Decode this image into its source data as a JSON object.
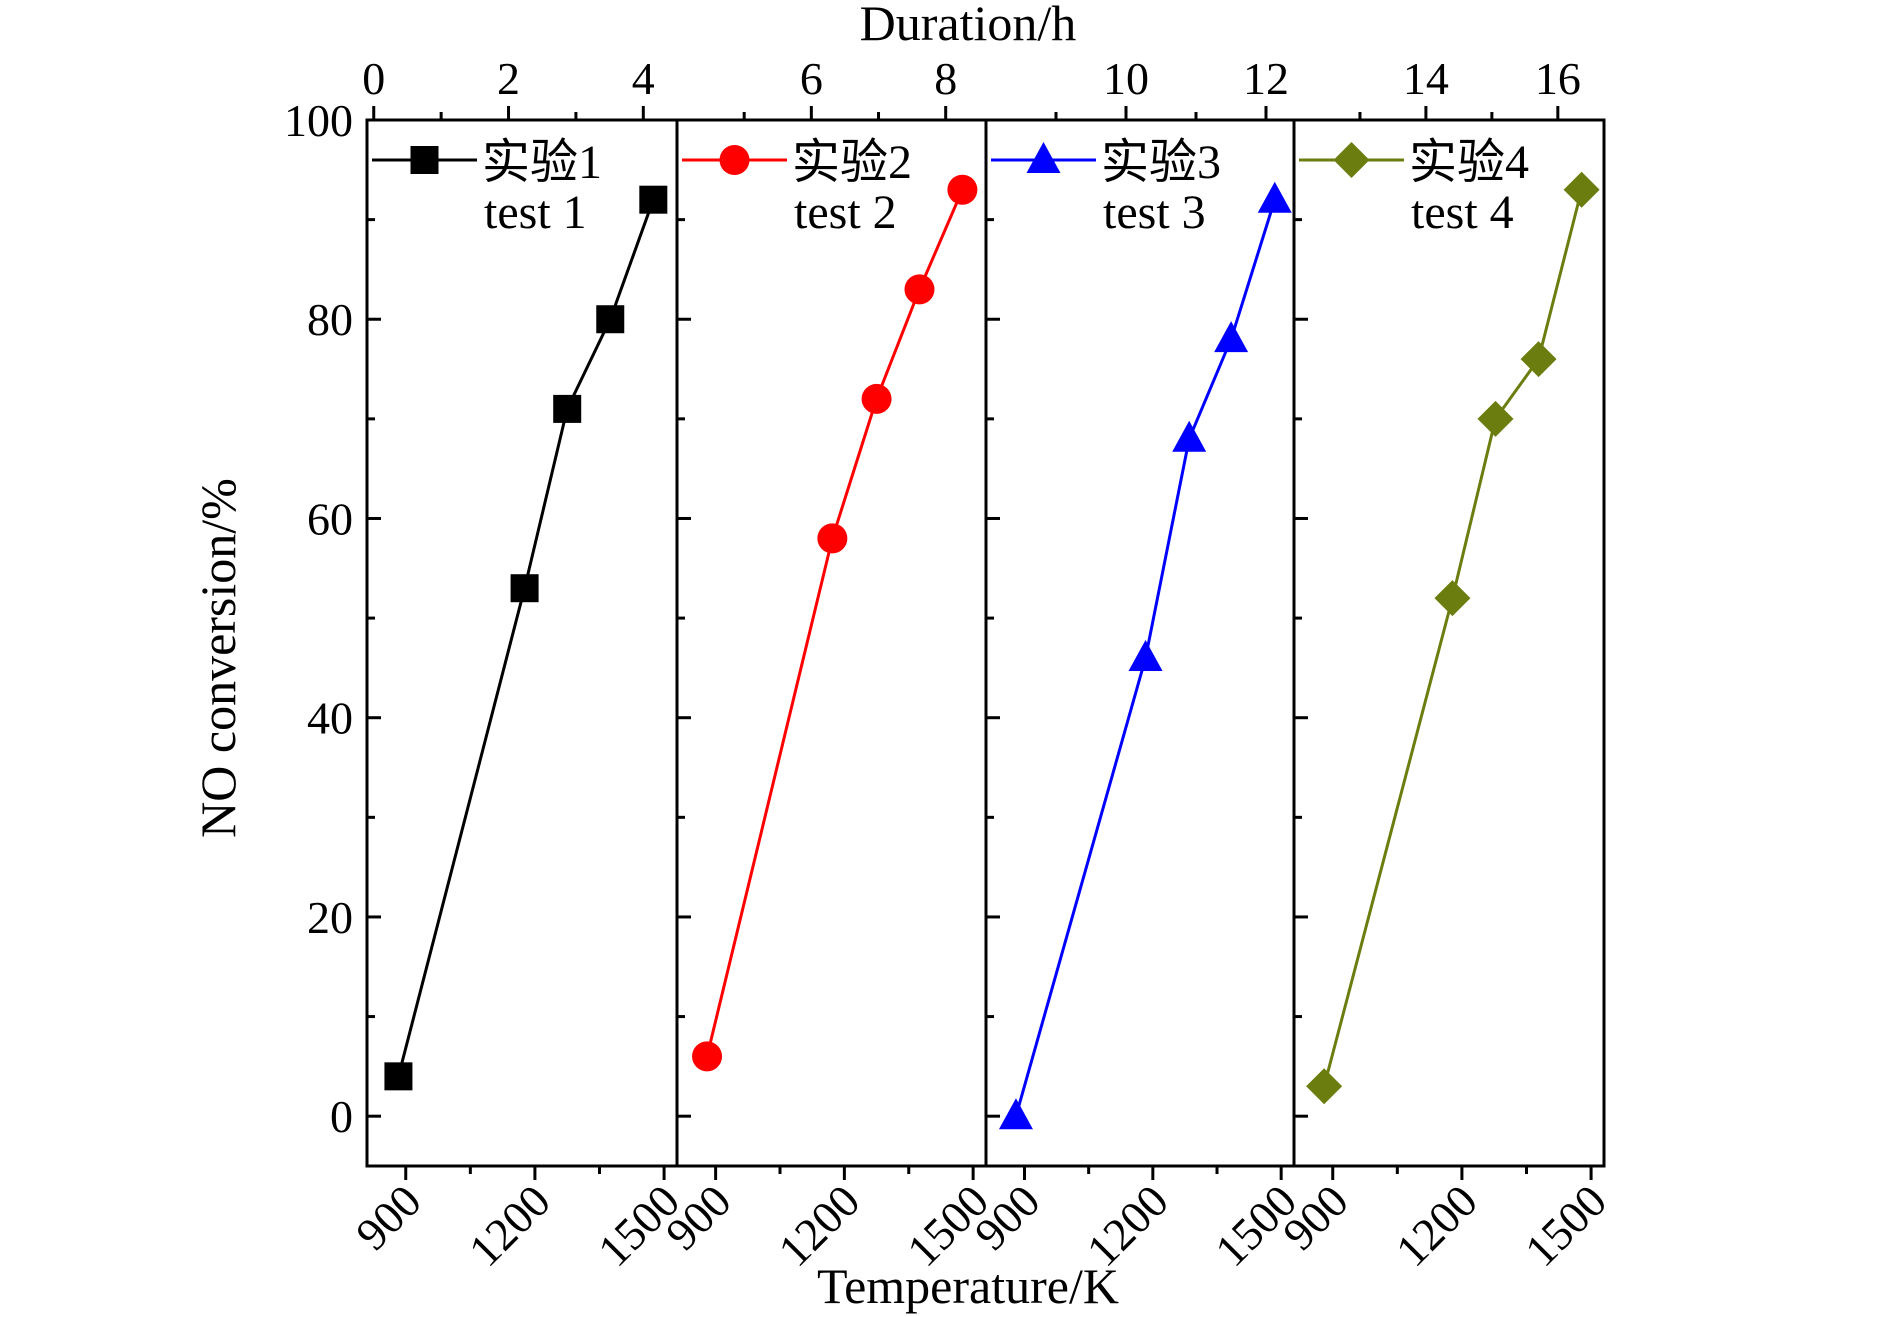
{
  "chart_data": {
    "type": "line",
    "layout": "four side-by-side panels sharing y axis",
    "ylabel": "NO conversion/%",
    "xlabel": "Temperature/K",
    "x2label": "Duration/h",
    "ylim": [
      -5,
      100
    ],
    "yticks": [
      0,
      20,
      40,
      60,
      80,
      100
    ],
    "xticks": [
      900,
      1200,
      1500
    ],
    "grid": false,
    "legend_placement": "top of each panel",
    "panels": [
      {
        "series_name": "实验1",
        "series_name_en": "test 1",
        "color": "#000000",
        "marker": "square",
        "xlim": [
          810,
          1530
        ],
        "x2lim": [
          -0.1,
          4.5
        ],
        "x2ticks": [
          0,
          2,
          4
        ],
        "x2ticks_minor": [
          1,
          3
        ],
        "legend_marker_x": 960,
        "x": [
          883,
          1176,
          1275,
          1375,
          1475
        ],
        "y": [
          4,
          53,
          71,
          80,
          92
        ]
      },
      {
        "series_name": "实验2",
        "series_name_en": "test 2",
        "color": "#ff0000",
        "marker": "circle",
        "xlim": [
          810,
          1530
        ],
        "x2lim": [
          4.0,
          8.6
        ],
        "x2ticks": [
          6,
          8
        ],
        "x2ticks_minor": [
          5,
          7
        ],
        "legend_marker_x": 940,
        "x": [
          880,
          1172,
          1275,
          1375,
          1475
        ],
        "y": [
          6,
          58,
          72,
          83,
          93
        ]
      },
      {
        "series_name": "实验3",
        "series_name_en": "test 3",
        "color": "#0000ff",
        "marker": "triangle",
        "xlim": [
          810,
          1530
        ],
        "x2lim": [
          8.0,
          12.4
        ],
        "x2ticks": [
          10,
          12
        ],
        "x2ticks_minor": [
          9,
          11
        ],
        "legend_marker_x": 950,
        "x": [
          880,
          1183,
          1285,
          1383,
          1485
        ],
        "y": [
          0,
          46,
          68,
          78,
          92
        ]
      },
      {
        "series_name": "实验4",
        "series_name_en": "test 4",
        "color": "#6b7d0f",
        "marker": "diamond",
        "xlim": [
          810,
          1530
        ],
        "x2lim": [
          12.0,
          16.7
        ],
        "x2ticks": [
          14,
          16
        ],
        "x2ticks_minor": [
          13,
          15
        ],
        "legend_marker_x": 950,
        "x": [
          880,
          1178,
          1278,
          1378,
          1478
        ],
        "y": [
          3,
          52,
          70,
          76,
          93
        ]
      }
    ]
  }
}
